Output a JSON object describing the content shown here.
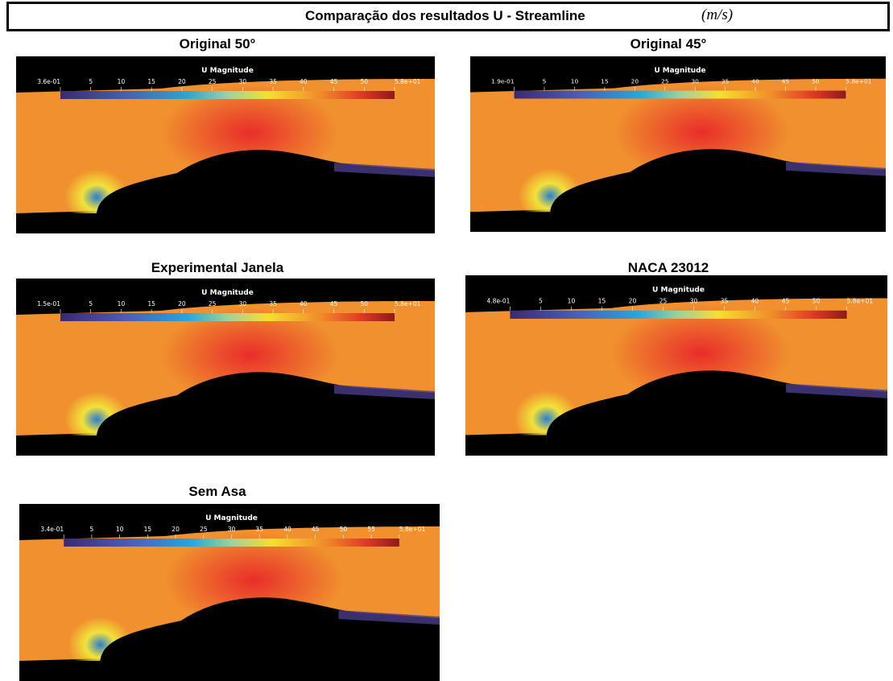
{
  "header": {
    "title": "Comparação dos resultados U - Streamline",
    "unit": "(m/s)"
  },
  "panels": [
    {
      "title": "Original 50°",
      "colorbar": {
        "label": "U Magnitude",
        "ticks": [
          "3.6e-01",
          "5",
          "10",
          "15",
          "20",
          "25",
          "30",
          "35",
          "40",
          "45",
          "50",
          "5.8e+01"
        ]
      }
    },
    {
      "title": "Original 45°",
      "colorbar": {
        "label": "U Magnitude",
        "ticks": [
          "1.9e-01",
          "5",
          "10",
          "15",
          "20",
          "25",
          "30",
          "35",
          "40",
          "45",
          "50",
          "5.8e+01"
        ]
      }
    },
    {
      "title": "Experimental Janela",
      "colorbar": {
        "label": "U Magnitude",
        "ticks": [
          "1.5e-01",
          "5",
          "10",
          "15",
          "20",
          "25",
          "30",
          "35",
          "40",
          "45",
          "50",
          "5.8e+01"
        ]
      }
    },
    {
      "title": "NACA 23012",
      "colorbar": {
        "label": "U Magnitude",
        "ticks": [
          "4.8e-01",
          "5",
          "10",
          "15",
          "20",
          "25",
          "30",
          "35",
          "40",
          "45",
          "50",
          "5.8e+01"
        ]
      }
    },
    {
      "title": "Sem Asa",
      "colorbar": {
        "label": "U Magnitude",
        "ticks": [
          "3.4e-01",
          "5",
          "10",
          "15",
          "20",
          "25",
          "30",
          "35",
          "40",
          "45",
          "50",
          "55",
          "5.8e+01"
        ]
      }
    }
  ]
}
